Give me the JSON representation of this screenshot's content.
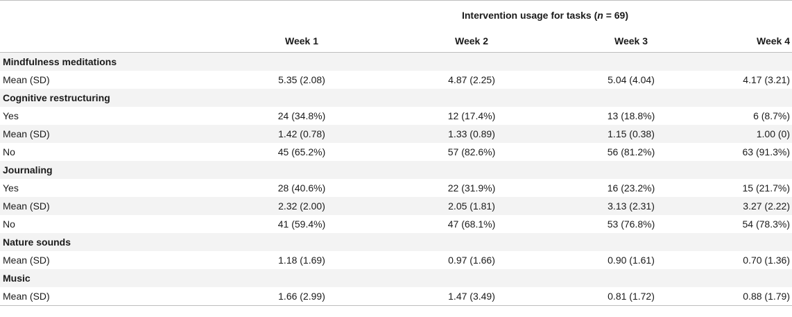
{
  "table": {
    "spanning_header_prefix": "Intervention usage for tasks (",
    "spanning_header_n": "n",
    "spanning_header_suffix": " = 69)",
    "columns": [
      "Week 1",
      "Week 2",
      "Week 3",
      "Week 4"
    ],
    "sections": [
      {
        "title": "Mindfulness meditations",
        "rows": [
          {
            "label": "Mean (SD)",
            "values": [
              "5.35 (2.08)",
              "4.87 (2.25)",
              "5.04 (4.04)",
              "4.17 (3.21)"
            ]
          }
        ]
      },
      {
        "title": "Cognitive restructuring",
        "rows": [
          {
            "label": "Yes",
            "values": [
              "24 (34.8%)",
              "12 (17.4%)",
              "13 (18.8%)",
              "6 (8.7%)"
            ]
          },
          {
            "label": "Mean (SD)",
            "values": [
              "1.42 (0.78)",
              "1.33 (0.89)",
              "1.15 (0.38)",
              "1.00 (0)"
            ]
          },
          {
            "label": "No",
            "values": [
              "45 (65.2%)",
              "57 (82.6%)",
              "56 (81.2%)",
              "63 (91.3%)"
            ]
          }
        ]
      },
      {
        "title": "Journaling",
        "rows": [
          {
            "label": "Yes",
            "values": [
              "28 (40.6%)",
              "22 (31.9%)",
              "16 (23.2%)",
              "15 (21.7%)"
            ]
          },
          {
            "label": "Mean (SD)",
            "values": [
              "2.32 (2.00)",
              "2.05 (1.81)",
              "3.13 (2.31)",
              "3.27 (2.22)"
            ]
          },
          {
            "label": "No",
            "values": [
              "41 (59.4%)",
              "47 (68.1%)",
              "53 (76.8%)",
              "54 (78.3%)"
            ]
          }
        ]
      },
      {
        "title": "Nature sounds",
        "rows": [
          {
            "label": "Mean (SD)",
            "values": [
              "1.18 (1.69)",
              "0.97 (1.66)",
              "0.90 (1.61)",
              "0.70 (1.36)"
            ]
          }
        ]
      },
      {
        "title": "Music",
        "rows": [
          {
            "label": "Mean (SD)",
            "values": [
              "1.66 (2.99)",
              "1.47 (3.49)",
              "0.81 (1.72)",
              "0.88 (1.79)"
            ]
          }
        ]
      }
    ]
  }
}
